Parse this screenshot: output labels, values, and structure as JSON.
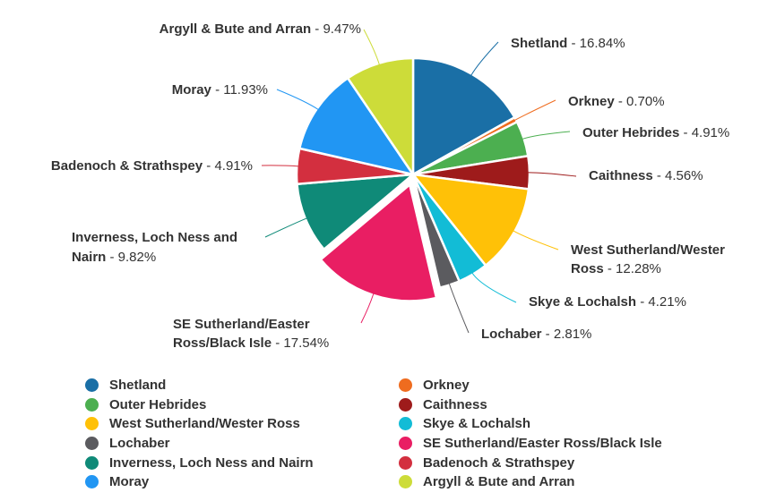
{
  "chart_data": {
    "type": "pie",
    "title": "",
    "slices": [
      {
        "name": "Shetland",
        "value": 16.84,
        "label": "16.84%",
        "color": "#1a6fa6"
      },
      {
        "name": "Orkney",
        "value": 0.7,
        "label": "0.70%",
        "color": "#ef6c1f"
      },
      {
        "name": "Outer Hebrides",
        "value": 4.91,
        "label": "4.91%",
        "color": "#4caf50"
      },
      {
        "name": "Caithness",
        "value": 4.56,
        "label": "4.56%",
        "color": "#9e1b1b"
      },
      {
        "name": "West Sutherland/Wester Ross",
        "value": 12.28,
        "label": "12.28%",
        "color": "#ffc107"
      },
      {
        "name": "Skye & Lochalsh",
        "value": 4.21,
        "label": "4.21%",
        "color": "#12bcd6"
      },
      {
        "name": "Lochaber",
        "value": 2.81,
        "label": "2.81%",
        "color": "#5b5b5f"
      },
      {
        "name": "SE Sutherland/Easter Ross/Black Isle",
        "value": 17.54,
        "label": "17.54%",
        "color": "#e91e63",
        "exploded": true
      },
      {
        "name": "Inverness, Loch Ness and Nairn",
        "value": 9.82,
        "label": "9.82%",
        "color": "#0f8a78"
      },
      {
        "name": "Badenoch & Strathspey",
        "value": 4.91,
        "label": "4.91%",
        "color": "#d32f3f"
      },
      {
        "name": "Moray",
        "value": 11.93,
        "label": "11.93%",
        "color": "#2196f3"
      },
      {
        "name": "Argyll & Bute and Arran",
        "value": 9.47,
        "label": "9.47%",
        "color": "#cddc39"
      }
    ],
    "legend_position": "bottom"
  }
}
